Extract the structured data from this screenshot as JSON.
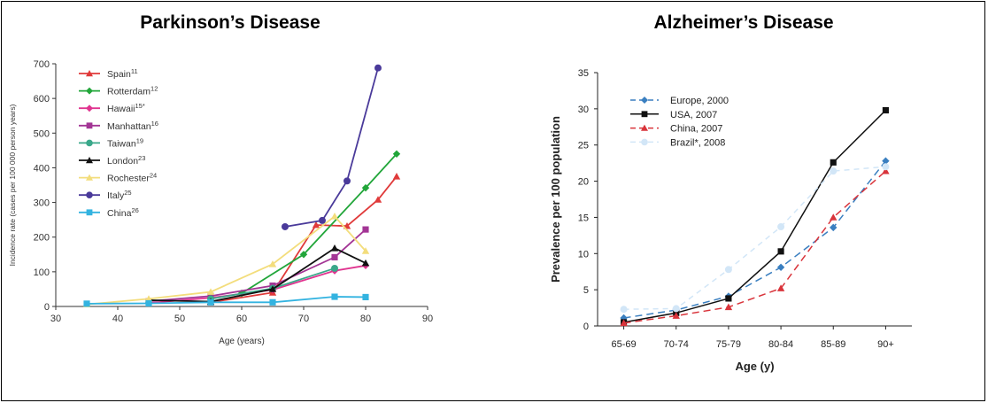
{
  "chart_data": [
    {
      "type": "line",
      "title": "Parkinson’s Disease",
      "xlabel": "Age (years)",
      "ylabel": "Incidence rate (cases per 100 000 person years)",
      "xlim": [
        30,
        90
      ],
      "ylim": [
        0,
        700
      ],
      "xticks": [
        "30",
        "40",
        "50",
        "60",
        "70",
        "80",
        "90"
      ],
      "yticks": [
        "0",
        "100",
        "200",
        "300",
        "400",
        "500",
        "600",
        "700"
      ],
      "legend": "top-left",
      "series": [
        {
          "name": "Spain",
          "sup": "11",
          "color": "#e03a3a",
          "marker": "triangle",
          "x": [
            55,
            65,
            72,
            77,
            82,
            85
          ],
          "y": [
            12,
            40,
            235,
            232,
            308,
            375
          ]
        },
        {
          "name": "Rotterdam",
          "sup": "12",
          "color": "#22a63a",
          "marker": "diamond",
          "x": [
            60,
            70,
            80,
            85
          ],
          "y": [
            38,
            150,
            342,
            440
          ]
        },
        {
          "name": "Hawaii",
          "sup": "15*",
          "color": "#e0338f",
          "marker": "diamond",
          "x": [
            45,
            55,
            65,
            75,
            80
          ],
          "y": [
            10,
            25,
            48,
            103,
            118
          ]
        },
        {
          "name": "Manhattan",
          "sup": "16",
          "color": "#a33595",
          "marker": "square",
          "x": [
            45,
            55,
            65,
            75,
            80
          ],
          "y": [
            15,
            30,
            60,
            142,
            222
          ]
        },
        {
          "name": "Taiwan",
          "sup": "19",
          "color": "#3aa88a",
          "marker": "circle",
          "x": [
            55,
            65,
            75
          ],
          "y": [
            22,
            52,
            110
          ]
        },
        {
          "name": "London",
          "sup": "23",
          "color": "#111111",
          "marker": "triangle",
          "x": [
            45,
            55,
            65,
            75,
            80
          ],
          "y": [
            18,
            14,
            50,
            168,
            125
          ]
        },
        {
          "name": "Rochester",
          "sup": "24",
          "color": "#f3dd7c",
          "marker": "triangle",
          "x": [
            35,
            45,
            55,
            65,
            75,
            80
          ],
          "y": [
            6,
            22,
            42,
            122,
            260,
            160
          ]
        },
        {
          "name": "Italy",
          "sup": "25",
          "color": "#4a3a9a",
          "marker": "circle",
          "x": [
            67,
            73,
            77,
            82
          ],
          "y": [
            230,
            248,
            362,
            688
          ]
        },
        {
          "name": "China",
          "sup": "26",
          "color": "#33b3e0",
          "marker": "square",
          "x": [
            35,
            45,
            55,
            65,
            75,
            80
          ],
          "y": [
            8,
            9,
            12,
            12,
            28,
            27
          ]
        }
      ]
    },
    {
      "type": "line",
      "title": "Alzheimer’s Disease",
      "xlabel": "Age (y)",
      "ylabel": "Prevalence per 100 population",
      "categories": [
        "65-69",
        "70-74",
        "75-79",
        "80-84",
        "85-89",
        "90+"
      ],
      "ylim": [
        0,
        35
      ],
      "yticks": [
        "0",
        "5",
        "10",
        "15",
        "20",
        "25",
        "30",
        "35"
      ],
      "legend": "top-left",
      "series": [
        {
          "name": "Europe, 2000",
          "color": "#3a7fc0",
          "marker": "diamond",
          "dash": "8,5",
          "values": [
            1.1,
            2.2,
            4.1,
            8.1,
            13.6,
            22.8
          ]
        },
        {
          "name": "USA, 2007",
          "color": "#111111",
          "marker": "square",
          "dash": "",
          "values": [
            0.5,
            1.8,
            3.8,
            10.3,
            22.6,
            29.8
          ]
        },
        {
          "name": "China, 2007",
          "color": "#d9343b",
          "marker": "triangle",
          "dash": "8,5",
          "values": [
            0.4,
            1.4,
            2.6,
            5.2,
            15.0,
            21.4
          ]
        },
        {
          "name": "Brazil*, 2008",
          "color": "#d2e6f7",
          "marker": "circle",
          "dash": "6,5",
          "values": [
            2.3,
            2.4,
            7.8,
            13.7,
            21.4,
            22.0
          ]
        }
      ]
    }
  ]
}
